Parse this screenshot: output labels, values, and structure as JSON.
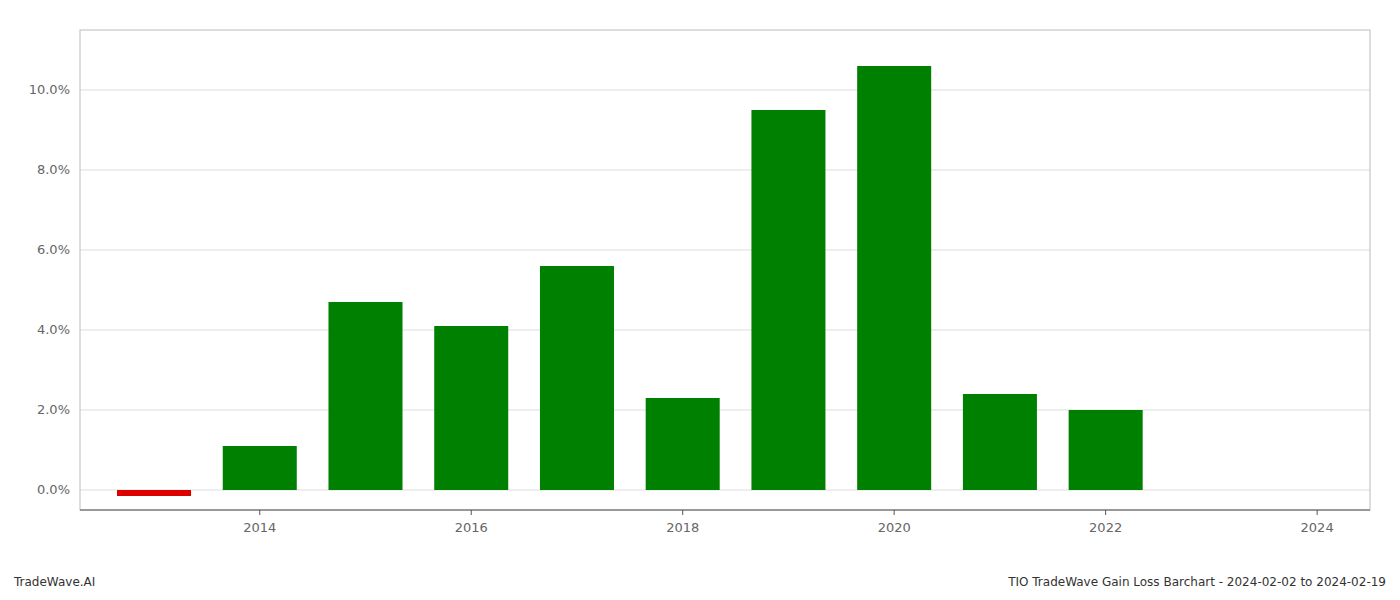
{
  "chart_data": {
    "type": "bar",
    "x": [
      2013,
      2014,
      2015,
      2016,
      2017,
      2018,
      2019,
      2020,
      2021,
      2022,
      2023
    ],
    "values": [
      -0.0015,
      0.011,
      0.047,
      0.041,
      0.056,
      0.023,
      0.095,
      0.106,
      0.024,
      0.02,
      0.0
    ],
    "colors": [
      "#dd0000",
      "#008000",
      "#008000",
      "#008000",
      "#008000",
      "#008000",
      "#008000",
      "#008000",
      "#008000",
      "#008000",
      "#008000"
    ],
    "xlim": [
      2012.3,
      2024.5
    ],
    "xticks": [
      2014,
      2016,
      2018,
      2020,
      2022,
      2024
    ],
    "ylim": [
      -0.005,
      0.115
    ],
    "yticks": [
      {
        "value": 0.0,
        "label": "0.0%"
      },
      {
        "value": 0.02,
        "label": "2.0%"
      },
      {
        "value": 0.04,
        "label": "4.0%"
      },
      {
        "value": 0.06,
        "label": "6.0%"
      },
      {
        "value": 0.08,
        "label": "8.0%"
      },
      {
        "value": 0.1,
        "label": "10.0%"
      }
    ],
    "grid": true,
    "annotations": [
      "TradeWave.AI",
      "TIO TradeWave Gain Loss Barchart - 2024-02-02 to 2024-02-19"
    ]
  }
}
